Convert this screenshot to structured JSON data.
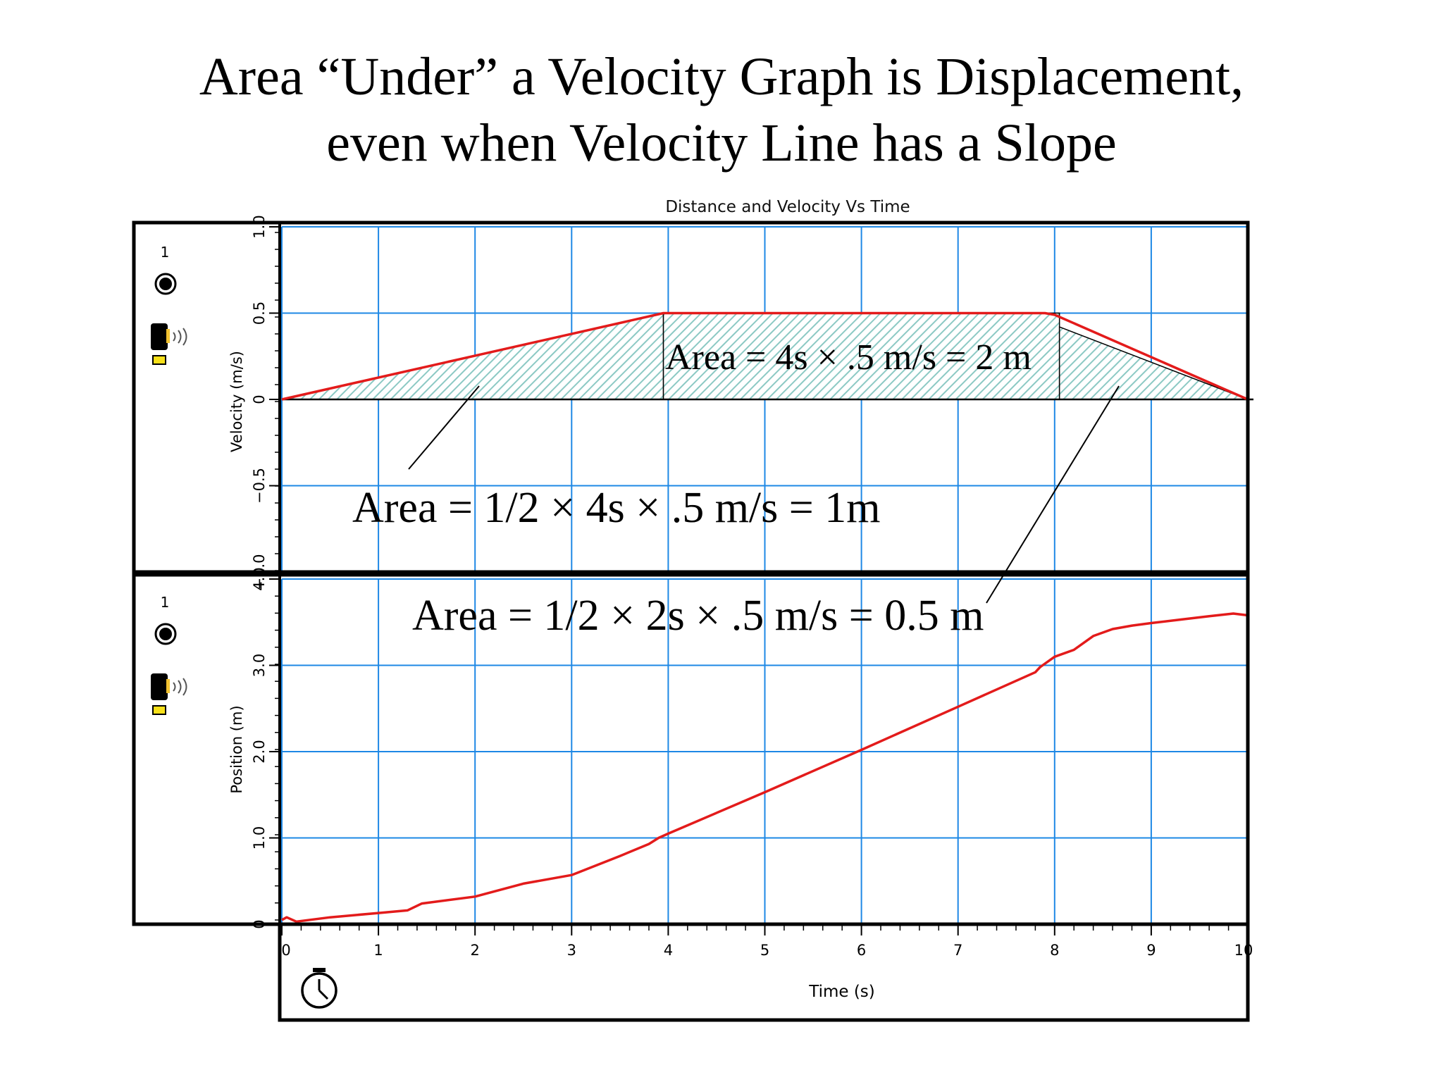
{
  "slide": {
    "title_line1": "Area “Under” a Velocity Graph is Displacement,",
    "title_line2": "even when Velocity Line has a Slope"
  },
  "colors": {
    "grid": "#1e88e5",
    "trace": "#e31b1b",
    "hatch": "#8cc9c4",
    "frame": "#000000"
  },
  "icons": [
    "sensor-dot-icon",
    "motion-detector-icon",
    "stopwatch-icon"
  ],
  "chart_data": {
    "type": "line",
    "title": "Distance  and  Velocity  Vs  Time",
    "xlabel": "Time (s)",
    "xlim": [
      0,
      10
    ],
    "x_ticks": [
      "0",
      "1",
      "2",
      "3",
      "4",
      "5",
      "6",
      "7",
      "8",
      "9",
      "10"
    ],
    "panels": [
      {
        "name": "velocity",
        "sensor_number": "1",
        "ylabel": "Velocity (m/s)",
        "ylim": [
          -1.0,
          1.0
        ],
        "y_ticks": [
          "1.0",
          "0.5",
          "0",
          "−0.5",
          "−1.0"
        ],
        "y_tick_values": [
          1.0,
          0.5,
          0,
          -0.5,
          -1.0
        ],
        "series": [
          {
            "x": [
              0,
              3.95,
              4.0,
              7.9,
              8.0,
              10.0
            ],
            "y": [
              0,
              0.5,
              0.5,
              0.5,
              0.49,
              0.0
            ]
          }
        ],
        "shaded_regions": [
          {
            "x": [
              0,
              3.95
            ],
            "y_top": [
              0,
              0.5
            ]
          },
          {
            "x": [
              3.95,
              8.05
            ],
            "y_top": [
              0.5,
              0.5
            ]
          },
          {
            "x": [
              8.05,
              10.0
            ],
            "y_top": [
              0.42,
              0.0
            ]
          }
        ],
        "annotations": [
          "Area = 4s × .5 m/s = 2 m",
          "Area = 1/2 × 4s × .5 m/s = 1m",
          "Area = 1/2 × 2s × .5 m/s = 0.5 m"
        ]
      },
      {
        "name": "position",
        "sensor_number": "1",
        "ylabel": "Position (m)",
        "ylim": [
          0,
          4.0
        ],
        "y_ticks": [
          "4.0",
          "3.0",
          "2.0",
          "1.0",
          "0"
        ],
        "y_tick_values": [
          4.0,
          3.0,
          2.0,
          1.0,
          0
        ],
        "series": [
          {
            "x": [
              0,
              0.05,
              0.15,
              0.5,
              1.0,
              1.3,
              1.45,
              2.0,
              2.5,
              3.0,
              3.5,
              3.8,
              3.9,
              4.0,
              5.0,
              6.0,
              7.0,
              7.8,
              7.85,
              8.0,
              8.2,
              8.4,
              8.6,
              8.8,
              9.0,
              9.3,
              9.6,
              9.85,
              10.0
            ],
            "y": [
              0.05,
              0.08,
              0.03,
              0.08,
              0.13,
              0.16,
              0.24,
              0.32,
              0.47,
              0.57,
              0.79,
              0.93,
              1.0,
              1.05,
              1.53,
              2.02,
              2.52,
              2.92,
              2.98,
              3.1,
              3.18,
              3.34,
              3.42,
              3.46,
              3.49,
              3.53,
              3.57,
              3.6,
              3.58
            ]
          }
        ]
      }
    ]
  }
}
